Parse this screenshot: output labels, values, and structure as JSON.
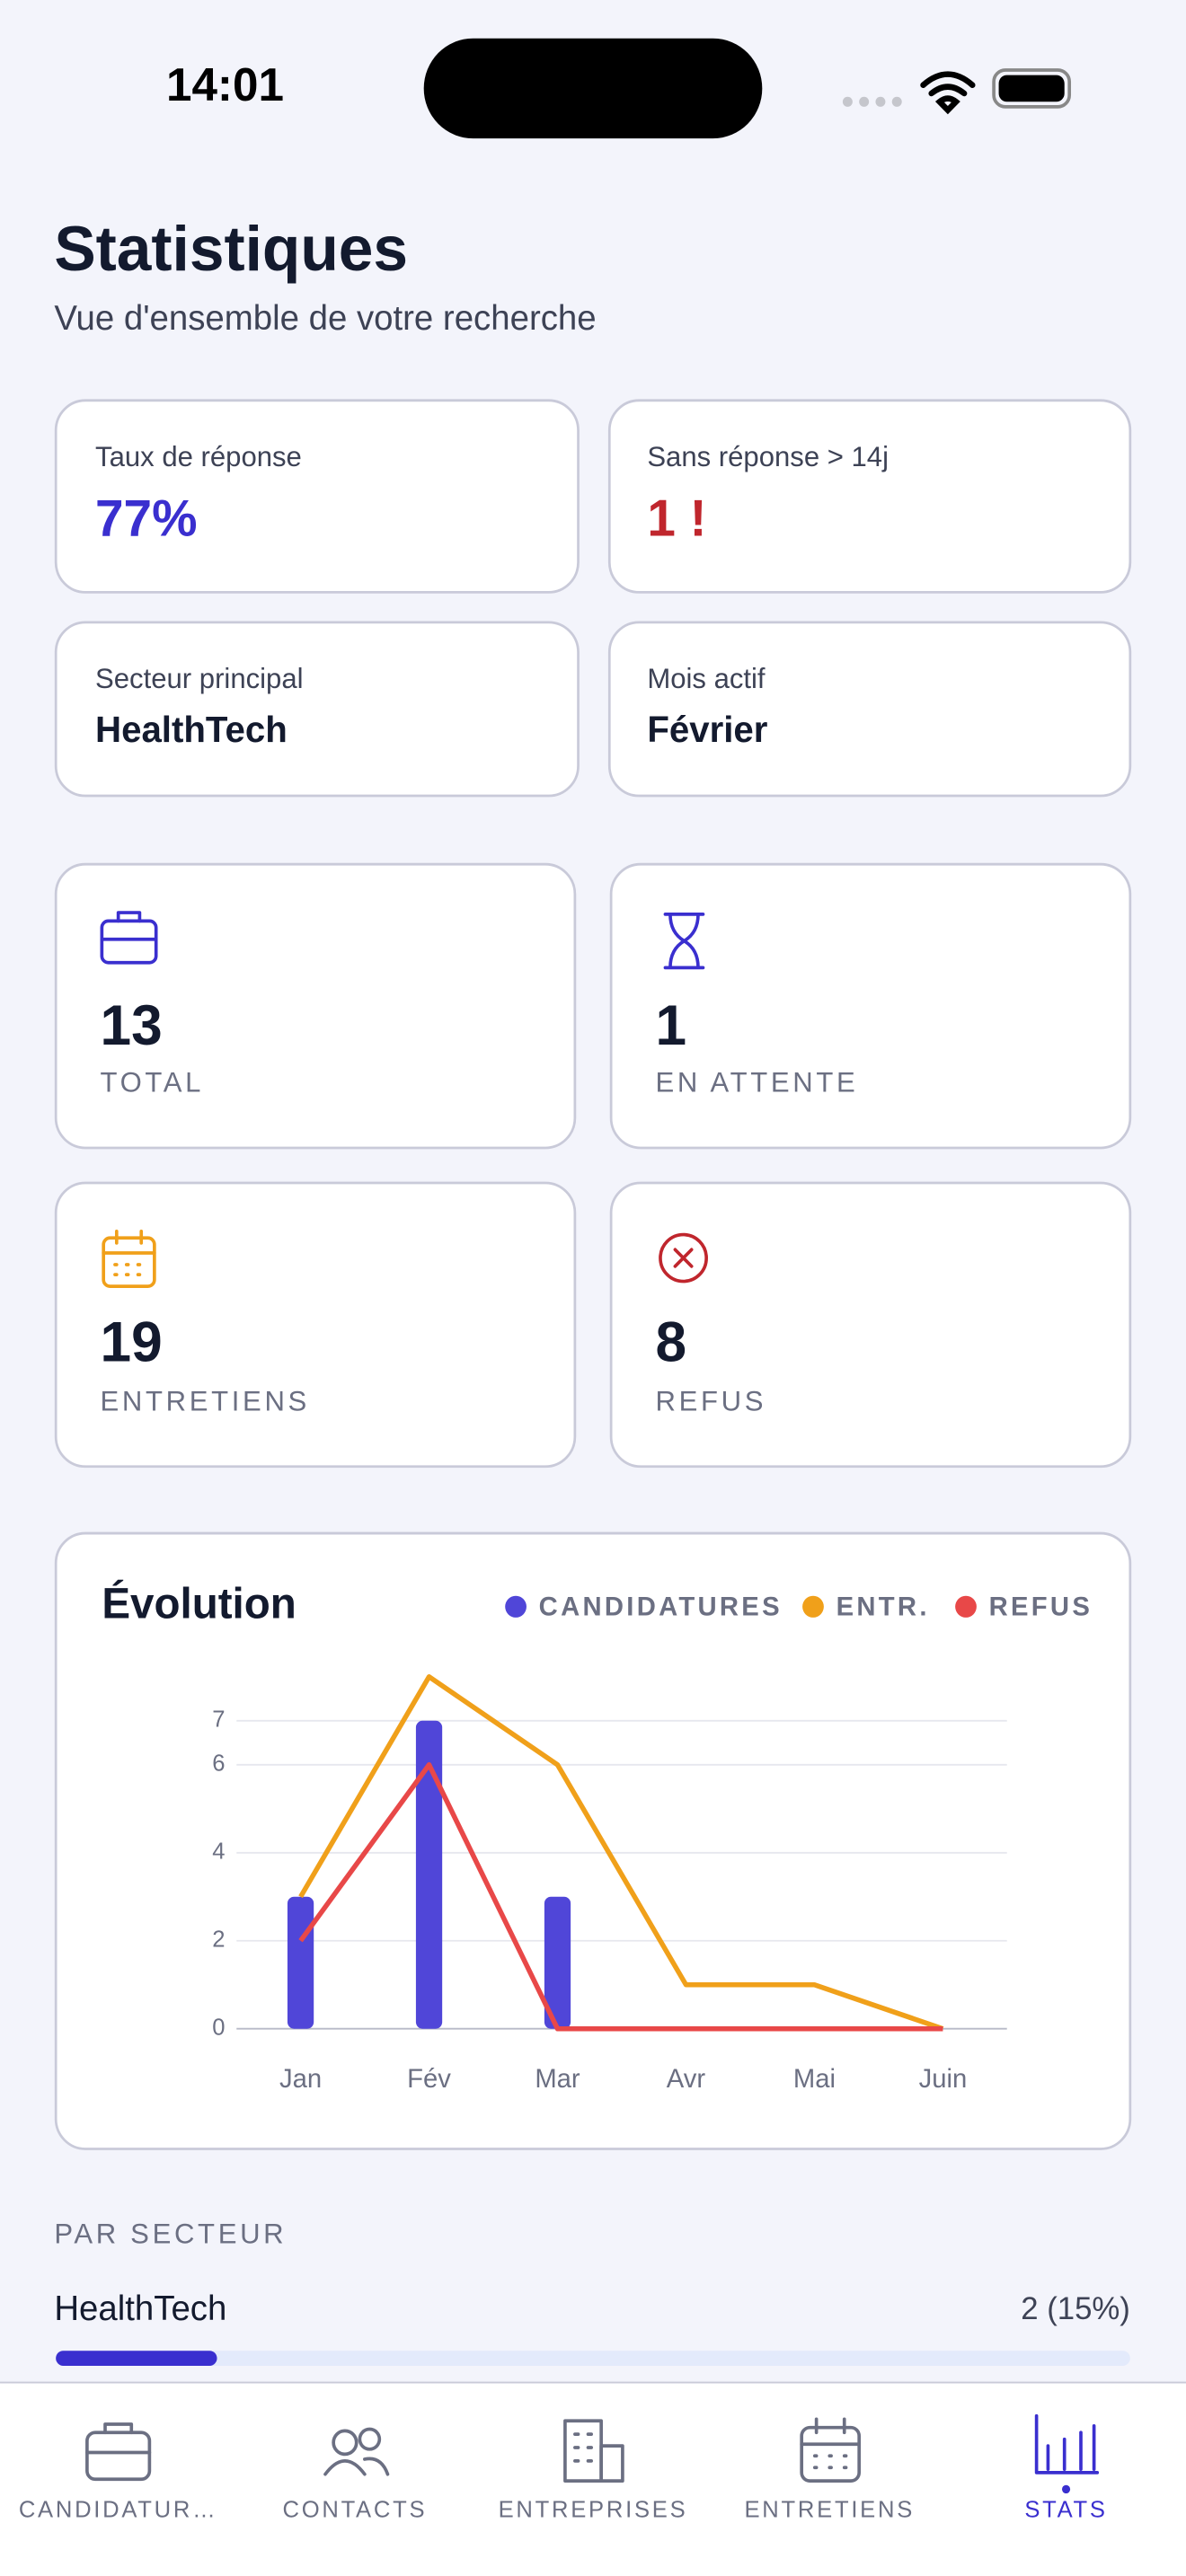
{
  "status_bar": {
    "time": "14:01"
  },
  "header": {
    "title": "Statistiques",
    "subtitle": "Vue d'ensemble de votre recherche"
  },
  "insights": [
    {
      "label": "Taux de réponse",
      "value": "77%"
    },
    {
      "label": "Sans réponse > 14j",
      "value": "1 !"
    },
    {
      "label": "Secteur principal",
      "value": "HealthTech"
    },
    {
      "label": "Mois actif",
      "value": "Février"
    }
  ],
  "stat_cards": [
    {
      "value": 13,
      "label": "TOTAL"
    },
    {
      "value": 1,
      "label": "EN ATTENTE"
    },
    {
      "value": 19,
      "label": "ENTRETIENS"
    },
    {
      "value": 8,
      "label": "REFUS"
    }
  ],
  "chart_data": {
    "type": "combo",
    "title": "Évolution",
    "categories": [
      "Jan",
      "Fév",
      "Mar",
      "Avr",
      "Mai",
      "Juin"
    ],
    "series": [
      {
        "name": "CANDIDATURES",
        "type": "bar",
        "color": "#5046d8",
        "values": [
          3,
          7,
          3,
          0,
          0,
          0
        ]
      },
      {
        "name": "ENTR.",
        "type": "line",
        "color": "#f0a01a",
        "values": [
          3,
          8,
          6,
          1,
          1,
          0
        ]
      },
      {
        "name": "REFUS",
        "type": "line",
        "color": "#e84848",
        "values": [
          2,
          6,
          0,
          0,
          0,
          0
        ]
      }
    ],
    "ylim": [
      0,
      8
    ],
    "yticks": [
      0,
      2,
      4,
      6,
      7
    ],
    "grid": true
  },
  "sectors": {
    "heading": "PAR SECTEUR",
    "items": [
      {
        "name": "HealthTech",
        "label": "2 (15%)",
        "percent": 15
      }
    ]
  },
  "tab_bar": {
    "tabs": [
      "CANDIDATUR…",
      "CONTACTS",
      "ENTREPRISES",
      "ENTRETIENS",
      "STATS"
    ],
    "active": 4
  }
}
